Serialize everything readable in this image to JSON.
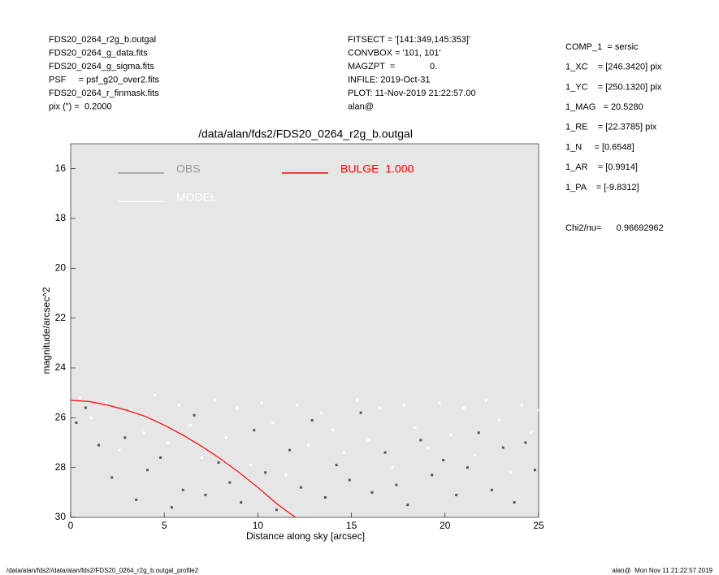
{
  "header": {
    "left": [
      "FDS20_0264_r2g_b.outgal",
      "FDS20_0264_g_data.fits",
      "FDS20_0264_g_sigma.fits",
      "PSF     = psf_g20_over2.fits",
      "FDS20_0264_r_finmask.fits",
      "pix (\") =  0.2000"
    ],
    "middle": [
      "FITSECT = '[141:349,145:353]'",
      "CONVBOX = '101, 101'",
      "MAGZPT  =              0.",
      "INFILE: 2019-Oct-31",
      "PLOT: 11-Nov-2019 21:22:57.00",
      "alan@"
    ],
    "right": [
      "COMP_1  = sersic",
      "1_XC    = [246.3420] pix",
      "1_YC    = [250.1320] pix",
      "1_MAG   = 20.5280",
      "1_RE    = [22.3785] pix",
      "1_N     = [0.6548]",
      "1_AR    = [0.9914]",
      "1_PA    = [-9.8312]"
    ],
    "chi2": "Chi2/nu=      0.96692962"
  },
  "footer": {
    "left": "/data/alan/fds2//data/alan/fds2/FDS20_0264_r2g_b.outgal_profile2",
    "right": "alan@  Mon Nov 11 21:22:57 2019"
  },
  "chart_data": {
    "type": "scatter",
    "title": "/data/alan/fds2/FDS20_0264_r2g_b.outgal",
    "xlabel": "Distance along sky [arcsec]",
    "ylabel": "magnitude/arcsec^2",
    "xlim": [
      0,
      25
    ],
    "xticks": [
      0,
      5,
      10,
      15,
      20,
      25
    ],
    "ylim": [
      15,
      30
    ],
    "yticks": [
      16,
      18,
      20,
      22,
      24,
      26,
      28,
      30
    ],
    "y_inverted": true,
    "legend": "upper left",
    "background": "#e6e6e6",
    "series": [
      {
        "name": "OBS",
        "color": "#555555",
        "legend_color": "#999999",
        "kind": "scatter",
        "x": [
          0.3,
          0.8,
          1.5,
          2.2,
          2.9,
          3.5,
          4.1,
          4.8,
          5.4,
          6.0,
          6.6,
          7.2,
          7.9,
          8.5,
          9.1,
          9.8,
          10.4,
          11.0,
          11.7,
          12.3,
          12.9,
          13.6,
          14.2,
          14.9,
          15.5,
          16.1,
          16.8,
          17.4,
          18.0,
          18.7,
          19.3,
          19.9,
          20.6,
          21.2,
          21.8,
          22.5,
          23.1,
          23.7,
          24.3,
          24.8
        ],
        "y": [
          26.2,
          25.6,
          27.1,
          28.4,
          26.8,
          29.3,
          28.1,
          27.6,
          29.6,
          28.9,
          25.9,
          29.1,
          27.8,
          28.6,
          29.4,
          26.5,
          28.2,
          29.7,
          27.3,
          28.8,
          26.1,
          29.2,
          27.9,
          28.5,
          25.8,
          29.0,
          27.4,
          28.7,
          29.5,
          26.9,
          28.3,
          27.7,
          29.1,
          28.0,
          26.6,
          28.9,
          27.2,
          29.4,
          27.0,
          28.1
        ]
      },
      {
        "name": "MODEL",
        "color": "#ffffff",
        "legend_color": "#ffffff",
        "kind": "scatter",
        "x": [
          0.5,
          1.1,
          1.9,
          2.6,
          3.2,
          3.9,
          4.5,
          5.2,
          5.8,
          6.4,
          7.0,
          7.7,
          8.3,
          8.9,
          9.6,
          10.2,
          10.8,
          11.5,
          12.1,
          12.7,
          13.4,
          14.0,
          14.6,
          15.3,
          15.9,
          16.5,
          17.2,
          17.8,
          18.4,
          19.1,
          19.7,
          20.3,
          21.0,
          21.6,
          22.2,
          22.9,
          23.5,
          24.1,
          24.6,
          25.0
        ],
        "y": [
          25.2,
          26.0,
          25.4,
          27.3,
          25.7,
          26.6,
          25.1,
          27.0,
          25.5,
          26.3,
          27.6,
          25.3,
          26.8,
          25.6,
          27.9,
          25.4,
          26.2,
          28.3,
          25.5,
          27.1,
          25.8,
          26.5,
          27.4,
          25.3,
          26.9,
          25.6,
          28.0,
          25.5,
          26.4,
          27.2,
          25.4,
          26.7,
          25.6,
          27.5,
          25.3,
          26.1,
          28.2,
          25.5,
          26.6,
          25.7
        ]
      },
      {
        "name": "BULGE  1.000",
        "color": "#ff0000",
        "legend_color": "#ff0000",
        "kind": "line",
        "x": [
          0,
          1,
          2,
          3,
          4,
          5,
          6,
          7,
          8,
          9,
          10,
          11,
          12
        ],
        "y": [
          25.3,
          25.35,
          25.5,
          25.7,
          25.95,
          26.3,
          26.7,
          27.15,
          27.65,
          28.2,
          28.8,
          29.45,
          30.0
        ]
      }
    ]
  }
}
